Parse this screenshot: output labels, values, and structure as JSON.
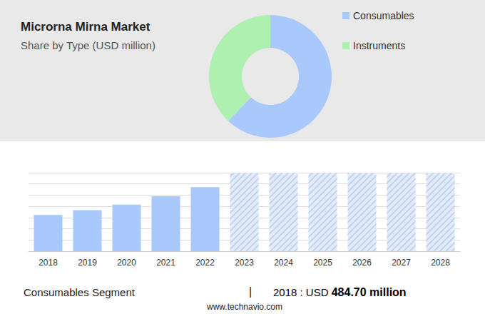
{
  "chart_data": [
    {
      "type": "pie",
      "title": "Microrna Mirna Market",
      "subtitle": "Share by Type (USD million)",
      "categories": [
        "Consumables",
        "Instruments"
      ],
      "values": [
        62,
        38
      ],
      "colors": [
        "#a9c8fb",
        "#aef0b0"
      ],
      "legend": "top-right"
    },
    {
      "type": "bar",
      "categories": [
        "2018",
        "2019",
        "2020",
        "2021",
        "2022",
        "2023",
        "2024",
        "2025",
        "2026",
        "2027",
        "2028"
      ],
      "series": [
        {
          "values": [
            484.7,
            550,
            624,
            736,
            857,
            null,
            null,
            null,
            null,
            null,
            null
          ],
          "color": "#a9c8fb"
        },
        {
          "values": [
            null,
            null,
            null,
            null,
            null,
            1050,
            1050,
            1050,
            1050,
            1050,
            1050
          ],
          "color": "#e4ebf9",
          "marker": "hatched"
        }
      ],
      "ylim": [
        0,
        1050
      ],
      "yticks": [
        0,
        150,
        300,
        450,
        600,
        750,
        900,
        1050
      ],
      "grid": true,
      "tick_labels": "x"
    }
  ],
  "footer": {
    "segment": "Consumables Segment",
    "separator": "|",
    "value": "2018 : USD 484.70 million",
    "source": "www.technavio.com"
  }
}
